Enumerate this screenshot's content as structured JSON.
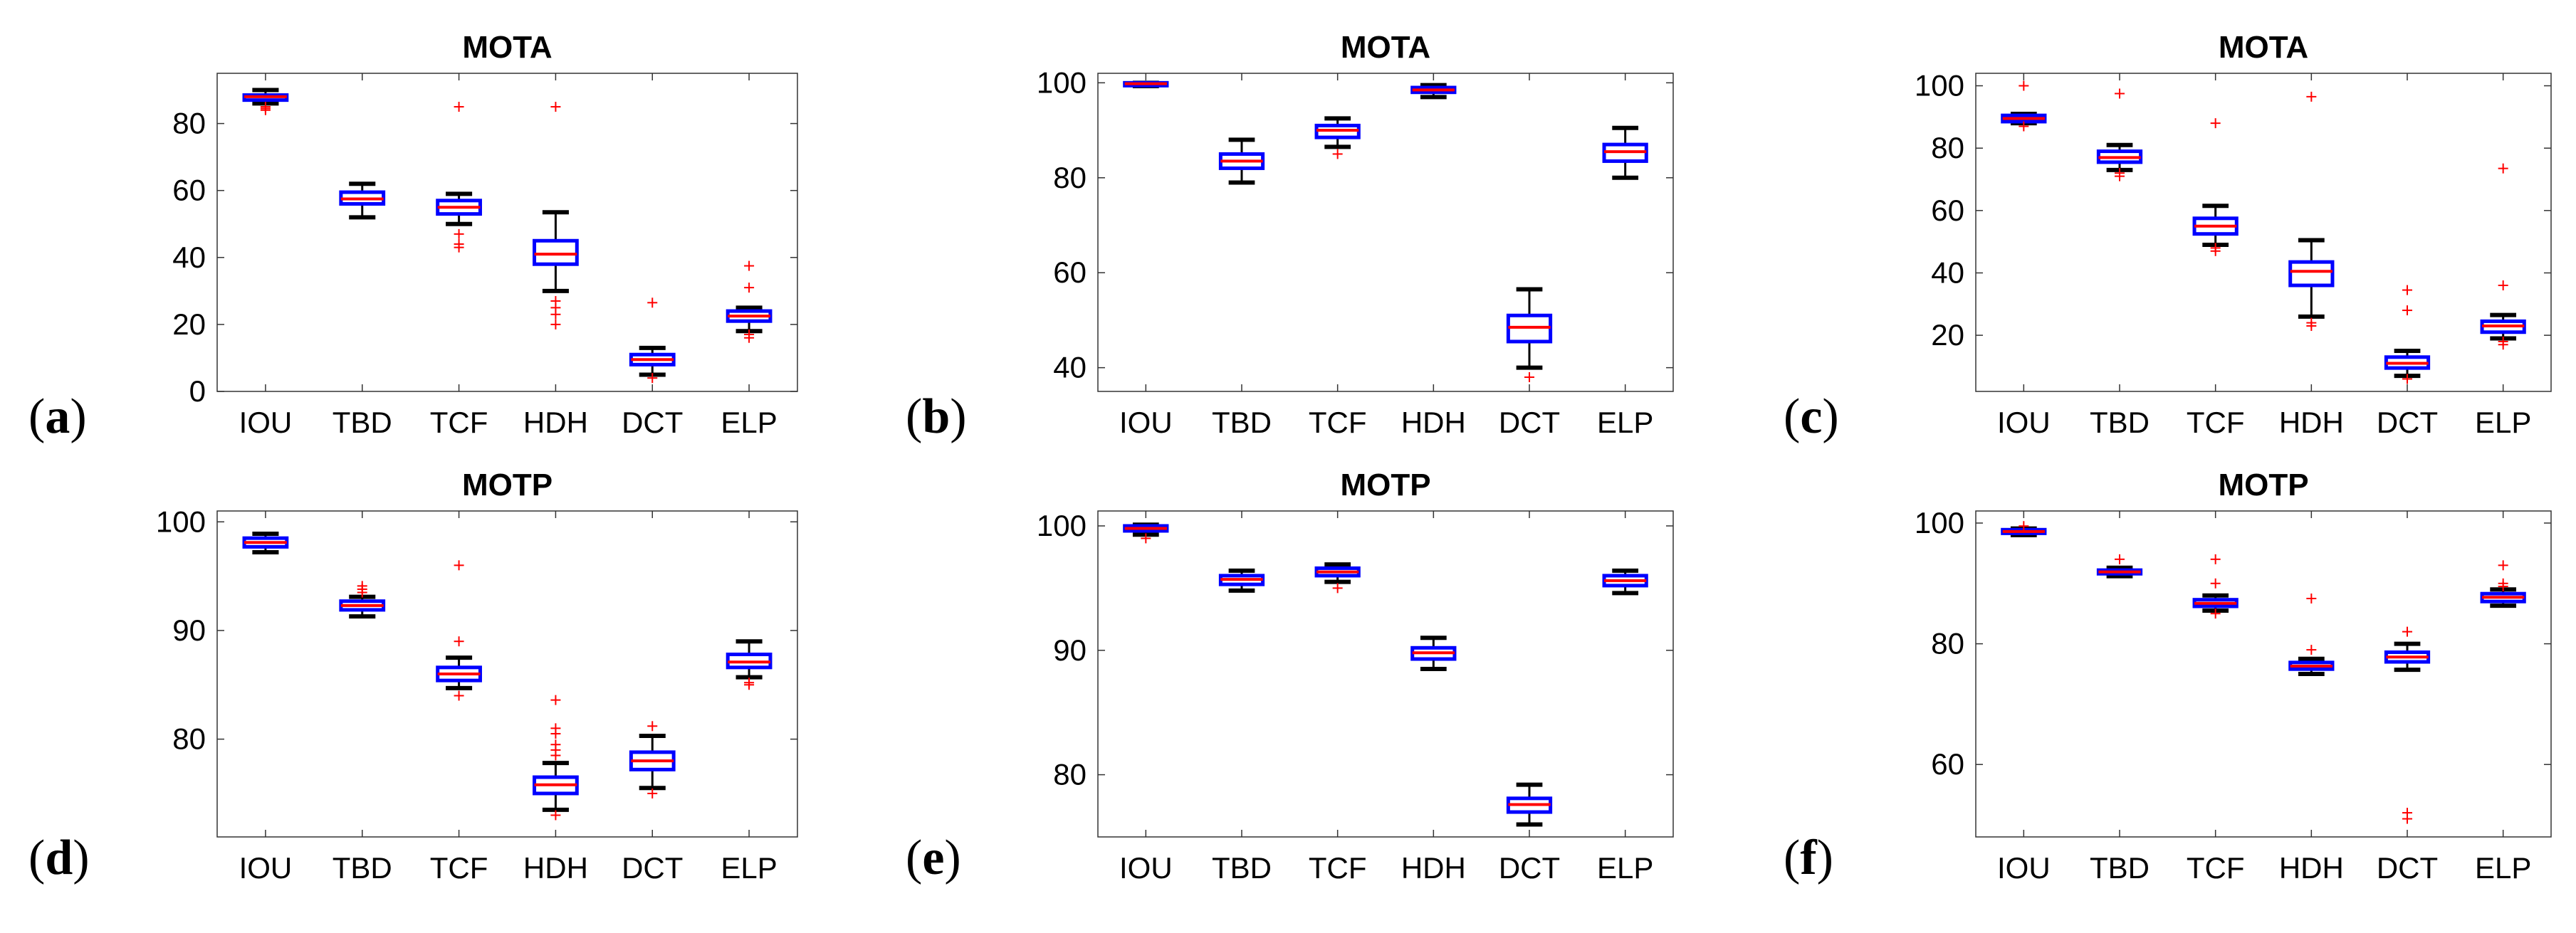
{
  "colors": {
    "box": "#0000ff",
    "median": "#ff0000",
    "whisker": "#000000",
    "outlier": "#ff0000",
    "axis": "#333333"
  },
  "chart_data": [
    {
      "panel": "(a)",
      "type": "boxplot",
      "title": "MOTA",
      "xlabel": "",
      "ylabel": "",
      "categories": [
        "IOU",
        "TBD",
        "TCF",
        "HDH",
        "DCT",
        "ELP"
      ],
      "ylim": [
        0,
        95
      ],
      "yticks": [
        0,
        20,
        40,
        60,
        80
      ],
      "boxes": [
        {
          "min": 86,
          "q1": 87,
          "median": 88,
          "q3": 88.5,
          "max": 90,
          "outliers": [
            84,
            84.5,
            85
          ]
        },
        {
          "min": 52,
          "q1": 56,
          "median": 57.5,
          "q3": 59.5,
          "max": 62,
          "outliers": []
        },
        {
          "min": 50,
          "q1": 53,
          "median": 55,
          "q3": 57,
          "max": 59,
          "outliers": [
            85,
            47,
            44,
            43
          ]
        },
        {
          "min": 30,
          "q1": 38,
          "median": 41,
          "q3": 45,
          "max": 53.5,
          "outliers": [
            85,
            27,
            25,
            23,
            20
          ]
        },
        {
          "min": 5,
          "q1": 8,
          "median": 9.5,
          "q3": 11,
          "max": 13,
          "outliers": [
            26.5,
            4
          ]
        },
        {
          "min": 18,
          "q1": 21,
          "median": 22.5,
          "q3": 24,
          "max": 25,
          "outliers": [
            37.5,
            31,
            17,
            16
          ]
        }
      ]
    },
    {
      "panel": "(b)",
      "type": "boxplot",
      "title": "MOTA",
      "xlabel": "",
      "ylabel": "",
      "categories": [
        "IOU",
        "TBD",
        "TCF",
        "HDH",
        "DCT",
        "ELP"
      ],
      "ylim": [
        35,
        102
      ],
      "yticks": [
        40,
        60,
        80,
        100
      ],
      "boxes": [
        {
          "min": 99.3,
          "q1": 99.6,
          "median": 99.8,
          "q3": 100,
          "max": 100,
          "outliers": []
        },
        {
          "min": 79,
          "q1": 82,
          "median": 83.5,
          "q3": 85,
          "max": 88,
          "outliers": []
        },
        {
          "min": 86.5,
          "q1": 88.5,
          "median": 90,
          "q3": 91,
          "max": 92.5,
          "outliers": [
            85
          ]
        },
        {
          "min": 97,
          "q1": 98,
          "median": 98.5,
          "q3": 99,
          "max": 99.5,
          "outliers": []
        },
        {
          "min": 40,
          "q1": 45.5,
          "median": 48.5,
          "q3": 51,
          "max": 56.5,
          "outliers": [
            38
          ]
        },
        {
          "min": 80,
          "q1": 83.5,
          "median": 85.5,
          "q3": 87,
          "max": 90.5,
          "outliers": []
        }
      ]
    },
    {
      "panel": "(c)",
      "type": "boxplot",
      "title": "MOTA",
      "xlabel": "",
      "ylabel": "",
      "categories": [
        "IOU",
        "TBD",
        "TCF",
        "HDH",
        "DCT",
        "ELP"
      ],
      "ylim": [
        2,
        104
      ],
      "yticks": [
        20,
        40,
        60,
        80,
        100
      ],
      "boxes": [
        {
          "min": 88,
          "q1": 88.5,
          "median": 89.5,
          "q3": 90.5,
          "max": 91,
          "outliers": [
            100,
            87
          ]
        },
        {
          "min": 73,
          "q1": 75.5,
          "median": 77,
          "q3": 79,
          "max": 81,
          "outliers": [
            97.5,
            71,
            72
          ]
        },
        {
          "min": 49,
          "q1": 52.5,
          "median": 55,
          "q3": 57.5,
          "max": 61.5,
          "outliers": [
            88,
            47,
            48
          ]
        },
        {
          "min": 26,
          "q1": 36,
          "median": 40.5,
          "q3": 43.5,
          "max": 50.5,
          "outliers": [
            96.5,
            24,
            23
          ]
        },
        {
          "min": 7,
          "q1": 9.5,
          "median": 11,
          "q3": 13,
          "max": 15,
          "outliers": [
            34.5,
            28,
            6
          ]
        },
        {
          "min": 19,
          "q1": 21,
          "median": 23,
          "q3": 24.5,
          "max": 26.5,
          "outliers": [
            73.5,
            36,
            18,
            17
          ]
        }
      ]
    },
    {
      "panel": "(d)",
      "type": "boxplot",
      "title": "MOTP",
      "xlabel": "",
      "ylabel": "",
      "categories": [
        "IOU",
        "TBD",
        "TCF",
        "HDH",
        "DCT",
        "ELP"
      ],
      "ylim": [
        71,
        101
      ],
      "yticks": [
        80,
        90,
        100
      ],
      "boxes": [
        {
          "min": 97.2,
          "q1": 97.7,
          "median": 98.1,
          "q3": 98.5,
          "max": 98.9,
          "outliers": []
        },
        {
          "min": 91.3,
          "q1": 91.9,
          "median": 92.3,
          "q3": 92.7,
          "max": 93.1,
          "outliers": [
            93.5,
            93.8,
            94.1
          ]
        },
        {
          "min": 84.7,
          "q1": 85.4,
          "median": 86,
          "q3": 86.6,
          "max": 87.5,
          "outliers": [
            96,
            89,
            84
          ]
        },
        {
          "min": 73.5,
          "q1": 75,
          "median": 75.8,
          "q3": 76.5,
          "max": 77.8,
          "outliers": [
            83.6,
            81,
            80.5,
            79.5,
            79,
            78.5,
            73
          ]
        },
        {
          "min": 75.5,
          "q1": 77.2,
          "median": 78,
          "q3": 78.8,
          "max": 80.3,
          "outliers": [
            81.2,
            75
          ]
        },
        {
          "min": 85.7,
          "q1": 86.6,
          "median": 87.1,
          "q3": 87.8,
          "max": 89,
          "outliers": [
            85,
            85.2
          ]
        }
      ]
    },
    {
      "panel": "(e)",
      "type": "boxplot",
      "title": "MOTP",
      "xlabel": "",
      "ylabel": "",
      "categories": [
        "IOU",
        "TBD",
        "TCF",
        "HDH",
        "DCT",
        "ELP"
      ],
      "ylim": [
        75,
        101.2
      ],
      "yticks": [
        80,
        90,
        100
      ],
      "boxes": [
        {
          "min": 99.3,
          "q1": 99.6,
          "median": 99.8,
          "q3": 100,
          "max": 100.1,
          "outliers": [
            99
          ]
        },
        {
          "min": 94.8,
          "q1": 95.3,
          "median": 95.7,
          "q3": 96,
          "max": 96.4,
          "outliers": []
        },
        {
          "min": 95.5,
          "q1": 96,
          "median": 96.3,
          "q3": 96.6,
          "max": 96.9,
          "outliers": [
            95
          ]
        },
        {
          "min": 88.5,
          "q1": 89.3,
          "median": 89.8,
          "q3": 90.2,
          "max": 91,
          "outliers": []
        },
        {
          "min": 76,
          "q1": 77,
          "median": 77.6,
          "q3": 78.1,
          "max": 79.2,
          "outliers": []
        },
        {
          "min": 94.6,
          "q1": 95.2,
          "median": 95.6,
          "q3": 96,
          "max": 96.4,
          "outliers": []
        }
      ]
    },
    {
      "panel": "(f)",
      "type": "boxplot",
      "title": "MOTP",
      "xlabel": "",
      "ylabel": "",
      "categories": [
        "IOU",
        "TBD",
        "TCF",
        "HDH",
        "DCT",
        "ELP"
      ],
      "ylim": [
        48,
        102
      ],
      "yticks": [
        60,
        80,
        100
      ],
      "boxes": [
        {
          "min": 98,
          "q1": 98.3,
          "median": 98.6,
          "q3": 98.9,
          "max": 99.1,
          "outliers": [
            99.5
          ]
        },
        {
          "min": 91.2,
          "q1": 91.6,
          "median": 91.9,
          "q3": 92.2,
          "max": 92.6,
          "outliers": [
            94
          ]
        },
        {
          "min": 85.5,
          "q1": 86.2,
          "median": 86.7,
          "q3": 87.3,
          "max": 88,
          "outliers": [
            94,
            90,
            85
          ]
        },
        {
          "min": 75,
          "q1": 75.8,
          "median": 76.3,
          "q3": 76.9,
          "max": 77.5,
          "outliers": [
            87.5,
            79
          ]
        },
        {
          "min": 75.7,
          "q1": 77,
          "median": 77.8,
          "q3": 78.6,
          "max": 80,
          "outliers": [
            82,
            52,
            51
          ]
        },
        {
          "min": 86.3,
          "q1": 87,
          "median": 87.7,
          "q3": 88.3,
          "max": 89,
          "outliers": [
            93,
            90,
            89.5
          ]
        }
      ]
    }
  ]
}
